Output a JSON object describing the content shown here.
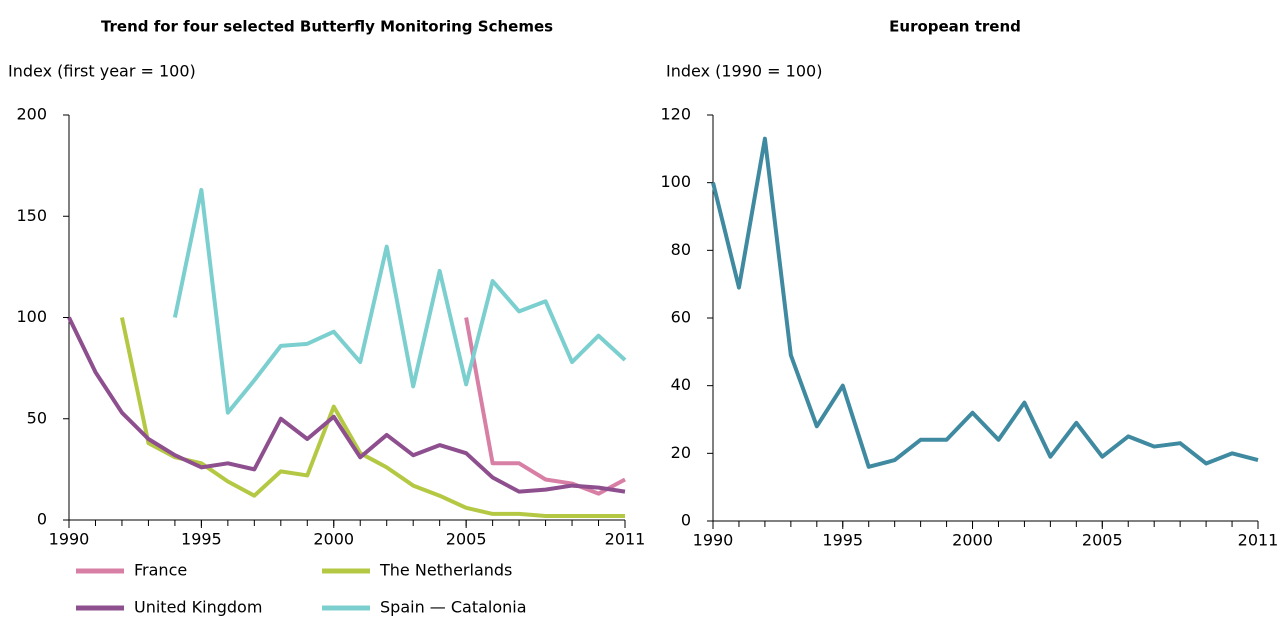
{
  "chart_data": [
    {
      "type": "line",
      "title": "Trend for four selected Butterfly Monitoring Schemes",
      "y_label": "Index (first year = 100)",
      "x": [
        1990,
        1991,
        1992,
        1993,
        1994,
        1995,
        1996,
        1997,
        1998,
        1999,
        2000,
        2001,
        2002,
        2003,
        2004,
        2005,
        2006,
        2007,
        2008,
        2009,
        2010,
        2011
      ],
      "xlim": [
        1990,
        2011
      ],
      "xticks": [
        1990,
        1995,
        2000,
        2005,
        2011
      ],
      "ylim": [
        0,
        200
      ],
      "yticks": [
        0,
        50,
        100,
        150,
        200
      ],
      "series": [
        {
          "name": "France",
          "color": "#d87fa6",
          "values": [
            null,
            null,
            null,
            null,
            null,
            null,
            null,
            null,
            null,
            null,
            null,
            null,
            null,
            null,
            null,
            100,
            28,
            28,
            20,
            18,
            13,
            20
          ]
        },
        {
          "name": "The Netherlands",
          "color": "#b5c844",
          "values": [
            null,
            null,
            100,
            38,
            31,
            28,
            19,
            12,
            24,
            22,
            56,
            33,
            26,
            17,
            12,
            6,
            3,
            3,
            2,
            2,
            2,
            2
          ]
        },
        {
          "name": "United Kingdom",
          "color": "#8e4f8e",
          "values": [
            100,
            73,
            53,
            40,
            32,
            26,
            28,
            25,
            50,
            40,
            51,
            31,
            42,
            32,
            37,
            33,
            21,
            14,
            15,
            17,
            16,
            14
          ]
        },
        {
          "name": "Spain — Catalonia",
          "color": "#7ccfcf",
          "values": [
            null,
            null,
            null,
            null,
            100,
            163,
            53,
            69,
            86,
            87,
            93,
            78,
            135,
            66,
            123,
            67,
            118,
            103,
            108,
            78,
            91,
            79
          ]
        }
      ]
    },
    {
      "type": "line",
      "title": "European trend",
      "y_label": "Index (1990 = 100)",
      "x": [
        1990,
        1991,
        1992,
        1993,
        1994,
        1995,
        1996,
        1997,
        1998,
        1999,
        2000,
        2001,
        2002,
        2003,
        2004,
        2005,
        2006,
        2007,
        2008,
        2009,
        2010,
        2011
      ],
      "xlim": [
        1990,
        2011
      ],
      "xticks": [
        1990,
        1995,
        2000,
        2005,
        2011
      ],
      "ylim": [
        0,
        120
      ],
      "yticks": [
        0,
        20,
        40,
        60,
        80,
        100,
        120
      ],
      "series": [
        {
          "color": "#3f8aa0",
          "values": [
            100,
            69,
            113,
            49,
            28,
            40,
            16,
            18,
            24,
            24,
            32,
            24,
            35,
            19,
            29,
            19,
            25,
            22,
            23,
            17,
            20,
            18
          ]
        }
      ]
    }
  ]
}
